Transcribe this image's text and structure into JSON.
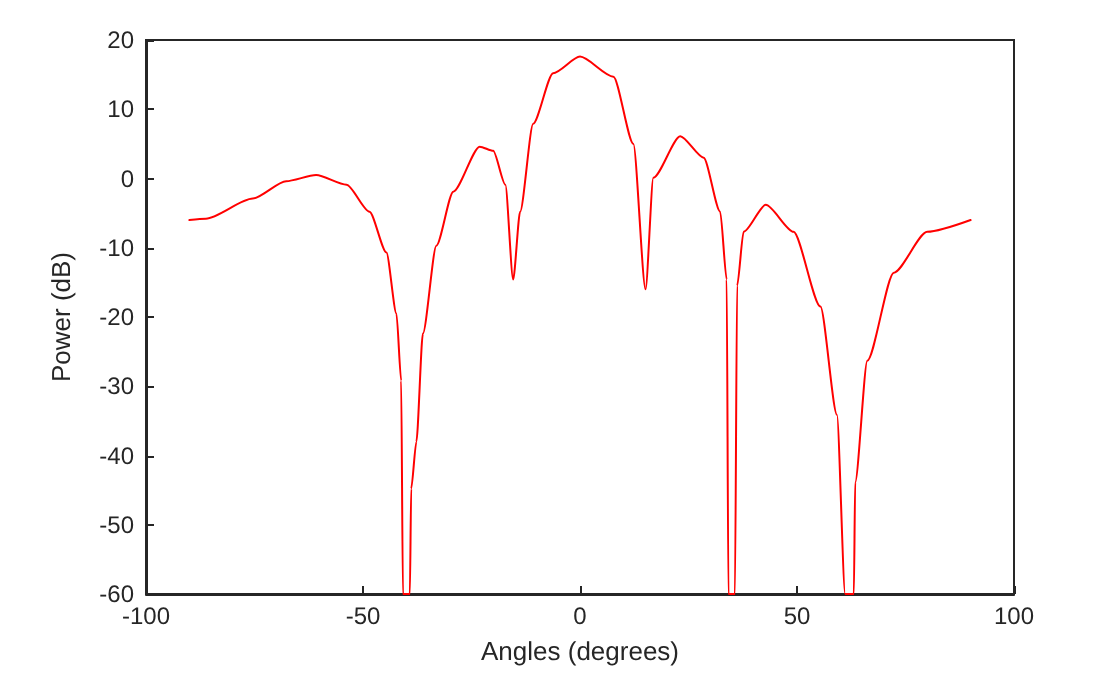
{
  "chart_data": {
    "type": "line",
    "xlabel": "Angles (degrees)",
    "ylabel": "Power (dB)",
    "xlim": [
      -100,
      100
    ],
    "xticks": [
      -100,
      -50,
      0,
      50,
      100
    ],
    "ylim": [
      -60,
      20
    ],
    "yticks": [
      -60,
      -50,
      -40,
      -30,
      -20,
      -10,
      0,
      10,
      20
    ],
    "marker": "none",
    "line_style": "solid",
    "series": [
      {
        "color": "#ff0000",
        "x": [
          -90,
          -86.2,
          -75.4,
          -67.7,
          -60.8,
          -53.8,
          -48.5,
          -44.6,
          -42.3,
          -41.2,
          -40.8,
          -39.2,
          -38.9,
          -37.7,
          -36.2,
          -33.1,
          -29.2,
          -23.1,
          -20,
          -17.2,
          -15.4,
          -13.8,
          -10.8,
          -6.2,
          0,
          7.7,
          12.3,
          15.1,
          16.9,
          23.1,
          28.5,
          32.3,
          33.8,
          34.2,
          35.7,
          36.2,
          37.7,
          42.8,
          49.2,
          55.4,
          59.2,
          61.1,
          63.1,
          63.4,
          66.2,
          72.3,
          80,
          90
        ],
        "values": [
          -6,
          -5.8,
          -2.9,
          -0.4,
          0.5,
          -0.9,
          -4.8,
          -10.7,
          -19.5,
          -29.2,
          -60,
          -60,
          -44.8,
          -38,
          -22.4,
          -9.7,
          -1.9,
          4.6,
          4,
          -0.9,
          -14.6,
          -4.8,
          7.9,
          15.2,
          17.6,
          14.7,
          5,
          -16,
          0.1,
          6.1,
          3,
          -4.8,
          -14.6,
          -60,
          -60,
          -15.5,
          -7.7,
          -3.8,
          -7.7,
          -18.5,
          -34.1,
          -60,
          -60,
          -43.9,
          -26.3,
          -13.6,
          -7.7,
          -6
        ]
      }
    ]
  }
}
